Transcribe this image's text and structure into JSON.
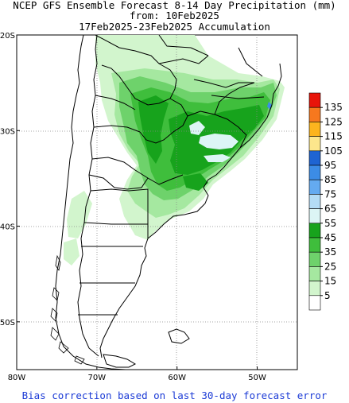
{
  "title": {
    "line1": "NCEP GFS Ensemble Forecast 8-14 Day Precipitation (mm)",
    "line2": "from: 10Feb2025",
    "line3": "17Feb2025-23Feb2025 Accumulation"
  },
  "footer": "Bias correction based on last 30-day forecast error",
  "map": {
    "lat_labels": [
      "20S",
      "30S",
      "40S",
      "50S"
    ],
    "lon_labels": [
      "80W",
      "70W",
      "60W",
      "50W"
    ],
    "lat_values": [
      -20,
      -30,
      -40,
      -50
    ],
    "lon_values": [
      -80,
      -70,
      -60,
      -50
    ],
    "extent": {
      "west": -80,
      "east": -45,
      "north": -20,
      "south": -55
    }
  },
  "legend": {
    "labels": [
      "135",
      "125",
      "115",
      "105",
      "95",
      "85",
      "75",
      "65",
      "55",
      "45",
      "35",
      "25",
      "15",
      "5"
    ],
    "colors": [
      "#e8140a",
      "#f7781e",
      "#fcb41e",
      "#fce68c",
      "#1e64d2",
      "#3c8ce6",
      "#64aaf0",
      "#b4dcf5",
      "#dcf5f5",
      "#17a31c",
      "#3fbe3c",
      "#6ed26b",
      "#a5e8a0",
      "#d2f5cd",
      "#ffffff"
    ]
  }
}
